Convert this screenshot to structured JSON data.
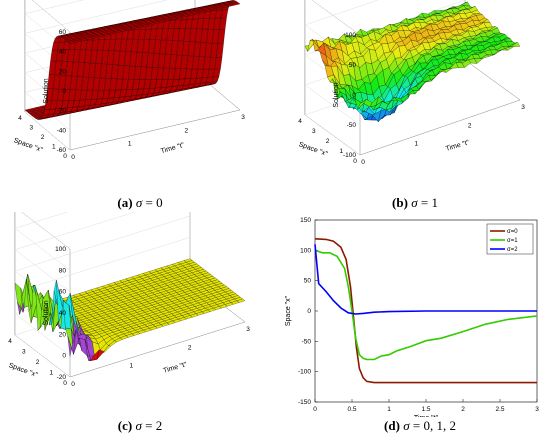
{
  "captions": [
    {
      "tag": "(a)",
      "sigma": "σ",
      "eq": " = 0"
    },
    {
      "tag": "(b)",
      "sigma": "σ",
      "eq": " = 1"
    },
    {
      "tag": "(c)",
      "sigma": "σ",
      "eq": " = 2"
    },
    {
      "tag": "(d)",
      "sigma": "σ",
      "eq": " = 0, 1, 2"
    }
  ],
  "chart_data": [
    {
      "type": "surface",
      "zlabel": "Solution",
      "xlabel": "Time \"t\"",
      "ylabel": "Space \"x\"",
      "zticks": [
        "60",
        "40",
        "20",
        "0",
        "-20",
        "-40",
        "-60"
      ],
      "tticks": [
        "0",
        "1",
        "2",
        "3"
      ],
      "xticks": [
        "0",
        "1",
        "2",
        "3",
        "4"
      ],
      "zlim": [
        -60,
        60
      ],
      "colors": [
        "#b00000",
        "#000000"
      ],
      "z_at_x0": 48,
      "z_at_x4": -58
    },
    {
      "type": "surface",
      "zlabel": "Solution",
      "xlabel": "Time \"t\"",
      "ylabel": "Space \"x\"",
      "zticks": [
        "100",
        "50",
        "0",
        "-50",
        "-100"
      ],
      "tticks": [
        "0",
        "1",
        "2",
        "3"
      ],
      "xticks": [
        "0",
        "1",
        "2",
        "3",
        "4"
      ],
      "zlim": [
        -100,
        100
      ]
    },
    {
      "type": "surface",
      "zlabel": "Solution",
      "xlabel": "Time \"t\"",
      "ylabel": "Space \"x\"",
      "zticks": [
        "100",
        "80",
        "60",
        "40",
        "20",
        "0",
        "-20"
      ],
      "tticks": [
        "0",
        "1",
        "2",
        "3"
      ],
      "xticks": [
        "0",
        "1",
        "2",
        "3",
        "4"
      ],
      "zlim": [
        -20,
        100
      ]
    },
    {
      "type": "line",
      "xlabel": "Time \"t\"",
      "ylabel": "Space \"x\"",
      "xlim": [
        0,
        3
      ],
      "ylim": [
        -150,
        150
      ],
      "xticks": [
        "0",
        "0.5",
        "1",
        "1.5",
        "2",
        "2.5",
        "3"
      ],
      "yticks": [
        "150",
        "100",
        "50",
        "0",
        "-50",
        "-100",
        "-150"
      ],
      "legend_position": "top-right",
      "series": [
        {
          "name": "σ=0",
          "color": "#8b1a00",
          "x": [
            0,
            0.15,
            0.25,
            0.35,
            0.42,
            0.48,
            0.52,
            0.56,
            0.6,
            0.65,
            0.7,
            0.8,
            1.0,
            1.5,
            2.0,
            2.5,
            3.0
          ],
          "y": [
            119,
            118,
            115,
            105,
            85,
            40,
            -10,
            -60,
            -95,
            -110,
            -116,
            -118,
            -118,
            -118,
            -118,
            -118,
            -118
          ]
        },
        {
          "name": "σ=1",
          "color": "#33cc00",
          "x": [
            0,
            0.1,
            0.2,
            0.3,
            0.4,
            0.45,
            0.5,
            0.55,
            0.6,
            0.65,
            0.7,
            0.8,
            0.9,
            1.0,
            1.1,
            1.3,
            1.5,
            1.7,
            2.0,
            2.3,
            2.6,
            3.0
          ],
          "y": [
            100,
            96,
            96,
            90,
            70,
            40,
            0,
            -45,
            -72,
            -78,
            -80,
            -80,
            -74,
            -72,
            -66,
            -58,
            -49,
            -45,
            -34,
            -22,
            -14,
            -8
          ]
        },
        {
          "name": "σ=2",
          "color": "#0000ff",
          "x": [
            0,
            0.05,
            0.15,
            0.25,
            0.35,
            0.45,
            0.55,
            0.65,
            0.8,
            1.0,
            1.5,
            2.0,
            2.5,
            3.0
          ],
          "y": [
            110,
            45,
            32,
            17,
            5,
            -3,
            -5,
            -4,
            -2,
            -1,
            0,
            0,
            0,
            0
          ]
        }
      ]
    }
  ]
}
